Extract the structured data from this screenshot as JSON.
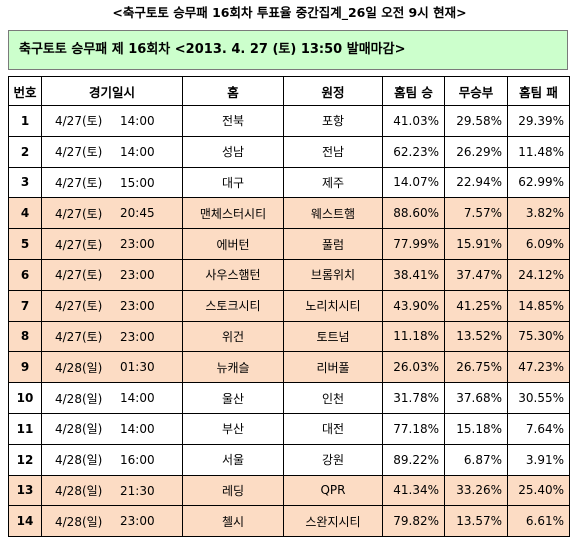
{
  "caption": "<축구토토 승무패 16회차 투표율 중간집계_26일 오전 9시 현재>",
  "banner": "축구토토 승무패 제 16회차 <2013. 4. 27 (토) 13:50 발매마감>",
  "headers": [
    "번호",
    "경기일시",
    "홈",
    "원정",
    "홈팀 승",
    "무승부",
    "홈팀 패"
  ],
  "colors": {
    "banner_bg": "#ccffcc",
    "highlight_row_bg": "#fcdcc4"
  },
  "rows": [
    {
      "no": "1",
      "date": "4/27(토)",
      "time": "14:00",
      "home": "전북",
      "away": "포항",
      "win": "41.03%",
      "draw": "29.58%",
      "lose": "29.39%",
      "highlight": false
    },
    {
      "no": "2",
      "date": "4/27(토)",
      "time": "14:00",
      "home": "성남",
      "away": "전남",
      "win": "62.23%",
      "draw": "26.29%",
      "lose": "11.48%",
      "highlight": false
    },
    {
      "no": "3",
      "date": "4/27(토)",
      "time": "15:00",
      "home": "대구",
      "away": "제주",
      "win": "14.07%",
      "draw": "22.94%",
      "lose": "62.99%",
      "highlight": false
    },
    {
      "no": "4",
      "date": "4/27(토)",
      "time": "20:45",
      "home": "맨체스터시티",
      "away": "웨스트햄",
      "win": "88.60%",
      "draw": "7.57%",
      "lose": "3.82%",
      "highlight": true
    },
    {
      "no": "5",
      "date": "4/27(토)",
      "time": "23:00",
      "home": "에버턴",
      "away": "풀럼",
      "win": "77.99%",
      "draw": "15.91%",
      "lose": "6.09%",
      "highlight": true
    },
    {
      "no": "6",
      "date": "4/27(토)",
      "time": "23:00",
      "home": "사우스햄턴",
      "away": "브롬위치",
      "win": "38.41%",
      "draw": "37.47%",
      "lose": "24.12%",
      "highlight": true
    },
    {
      "no": "7",
      "date": "4/27(토)",
      "time": "23:00",
      "home": "스토크시티",
      "away": "노리치시티",
      "win": "43.90%",
      "draw": "41.25%",
      "lose": "14.85%",
      "highlight": true
    },
    {
      "no": "8",
      "date": "4/27(토)",
      "time": "23:00",
      "home": "위건",
      "away": "토트넘",
      "win": "11.18%",
      "draw": "13.52%",
      "lose": "75.30%",
      "highlight": true
    },
    {
      "no": "9",
      "date": "4/28(일)",
      "time": "01:30",
      "home": "뉴캐슬",
      "away": "리버풀",
      "win": "26.03%",
      "draw": "26.75%",
      "lose": "47.23%",
      "highlight": true
    },
    {
      "no": "10",
      "date": "4/28(일)",
      "time": "14:00",
      "home": "울산",
      "away": "인천",
      "win": "31.78%",
      "draw": "37.68%",
      "lose": "30.55%",
      "highlight": false
    },
    {
      "no": "11",
      "date": "4/28(일)",
      "time": "14:00",
      "home": "부산",
      "away": "대전",
      "win": "77.18%",
      "draw": "15.18%",
      "lose": "7.64%",
      "highlight": false
    },
    {
      "no": "12",
      "date": "4/28(일)",
      "time": "16:00",
      "home": "서울",
      "away": "강원",
      "win": "89.22%",
      "draw": "6.87%",
      "lose": "3.91%",
      "highlight": false
    },
    {
      "no": "13",
      "date": "4/28(일)",
      "time": "21:30",
      "home": "레딩",
      "away": "QPR",
      "win": "41.34%",
      "draw": "33.26%",
      "lose": "25.40%",
      "highlight": true
    },
    {
      "no": "14",
      "date": "4/28(일)",
      "time": "23:00",
      "home": "첼시",
      "away": "스완지시티",
      "win": "79.82%",
      "draw": "13.57%",
      "lose": "6.61%",
      "highlight": true
    }
  ]
}
